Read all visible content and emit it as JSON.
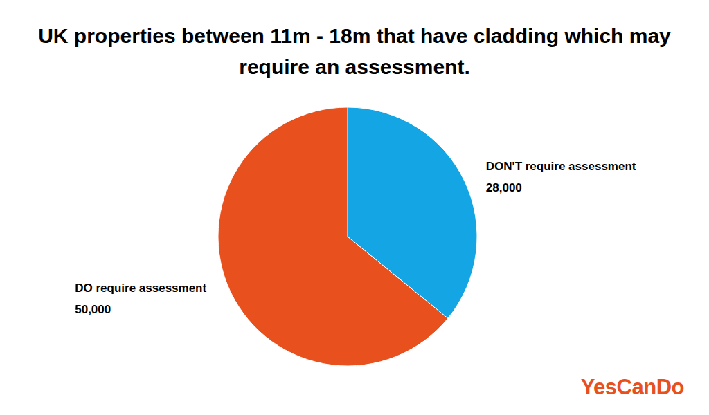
{
  "chart_data": {
    "type": "pie",
    "title": "UK properties between 11m - 18m that have cladding which may require an assessment.",
    "categories": [
      "DON'T require assessment",
      "DO require assessment"
    ],
    "values": [
      28000,
      50000
    ],
    "value_labels": [
      "28,000",
      "50,000"
    ],
    "colors": [
      "#14a6e4",
      "#e8501e"
    ],
    "data_labels": true,
    "source": "YesCanDo"
  }
}
